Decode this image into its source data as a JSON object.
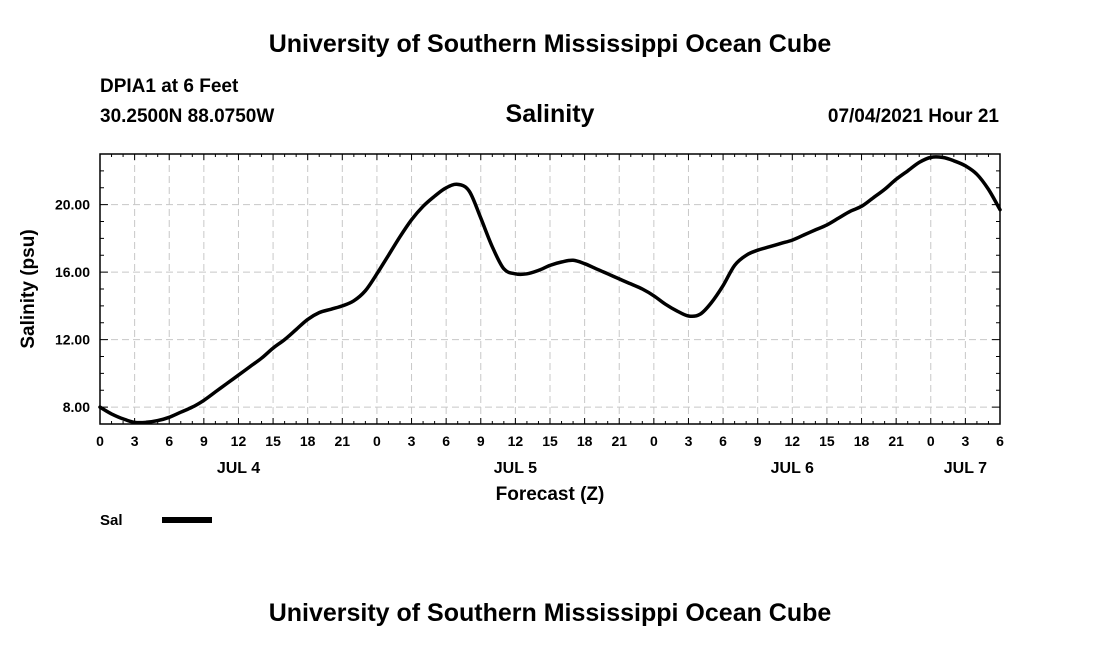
{
  "header": {
    "institution": "University of Southern Mississippi Ocean Cube",
    "station": "DPIA1 at 6 Feet",
    "coordinates": "30.2500N  88.0750W",
    "datetime": "07/04/2021 Hour 21"
  },
  "footer": {
    "institution": "University of Southern Mississippi Ocean Cube"
  },
  "chart_data": {
    "type": "line",
    "title": "Salinity",
    "xlabel": "Forecast (Z)",
    "ylabel": "Salinity (psu)",
    "ylim": [
      7,
      23
    ],
    "xlim": [
      0,
      78
    ],
    "grid": true,
    "x_tick_labels": [
      "0",
      "3",
      "6",
      "9",
      "12",
      "15",
      "18",
      "21",
      "0",
      "3",
      "6",
      "9",
      "12",
      "15",
      "18",
      "21",
      "0",
      "3",
      "6",
      "9",
      "12",
      "15",
      "18",
      "21",
      "0",
      "3",
      "6"
    ],
    "day_labels": [
      {
        "label": "JUL 4",
        "x": 12
      },
      {
        "label": "JUL 5",
        "x": 36
      },
      {
        "label": "JUL 6",
        "x": 60
      },
      {
        "label": "JUL 7",
        "x": 75
      }
    ],
    "y_ticks": [
      8,
      12,
      16,
      20
    ],
    "y_tick_labels": [
      "8.00",
      "12.00",
      "16.00",
      "20.00"
    ],
    "legend": [
      {
        "name": "Sal",
        "color": "#000000"
      }
    ],
    "series": [
      {
        "name": "Sal",
        "x": [
          0,
          1,
          2,
          3,
          4,
          5,
          6,
          7,
          8,
          9,
          10,
          11,
          12,
          13,
          14,
          15,
          16,
          17,
          18,
          19,
          20,
          21,
          22,
          23,
          24,
          25,
          26,
          27,
          28,
          29,
          30,
          31,
          32,
          33,
          34,
          35,
          36,
          37,
          38,
          39,
          40,
          41,
          42,
          43,
          44,
          45,
          46,
          47,
          48,
          49,
          50,
          51,
          52,
          53,
          54,
          55,
          56,
          57,
          58,
          59,
          60,
          61,
          62,
          63,
          64,
          65,
          66,
          67,
          68,
          69,
          70,
          71,
          72,
          73,
          74,
          75,
          76,
          77,
          78
        ],
        "values": [
          8.0,
          7.6,
          7.3,
          7.1,
          7.1,
          7.2,
          7.4,
          7.7,
          8.0,
          8.4,
          8.9,
          9.4,
          9.9,
          10.4,
          10.9,
          11.5,
          12.0,
          12.6,
          13.2,
          13.6,
          13.8,
          14.0,
          14.3,
          14.9,
          15.9,
          17.0,
          18.1,
          19.1,
          19.9,
          20.5,
          21.0,
          21.2,
          20.8,
          19.2,
          17.5,
          16.2,
          15.9,
          15.9,
          16.1,
          16.4,
          16.6,
          16.7,
          16.5,
          16.2,
          15.9,
          15.6,
          15.3,
          15.0,
          14.6,
          14.1,
          13.7,
          13.4,
          13.5,
          14.2,
          15.2,
          16.4,
          17.0,
          17.3,
          17.5,
          17.7,
          17.9,
          18.2,
          18.5,
          18.8,
          19.2,
          19.6,
          19.9,
          20.4,
          20.9,
          21.5,
          22.0,
          22.5,
          22.8,
          22.8,
          22.6,
          22.3,
          21.8,
          20.9,
          19.7
        ]
      }
    ]
  }
}
